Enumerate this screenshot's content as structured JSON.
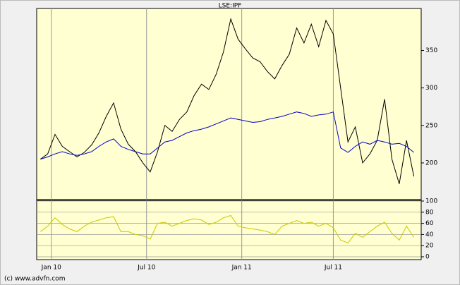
{
  "footer": "(c) www.advfn.com",
  "chart_data": [
    {
      "type": "line",
      "title": "LSE:IPF",
      "x": [
        -3,
        -1,
        1,
        3,
        5,
        7,
        9,
        11,
        13,
        15,
        17,
        19,
        21,
        23,
        25,
        27,
        29,
        31,
        33,
        35,
        37,
        39,
        41,
        43,
        45,
        47,
        49,
        51,
        53,
        55,
        57,
        59,
        61,
        63,
        65,
        67,
        69,
        71,
        73,
        75,
        77,
        79,
        81,
        83,
        85,
        87,
        89,
        91,
        93,
        95,
        97,
        99
      ],
      "xlim": [
        -4,
        101
      ],
      "ylim": [
        151,
        406
      ],
      "yticks": [
        200,
        250,
        300,
        350
      ],
      "series": [
        {
          "color": "#000000",
          "values": [
            205,
            212,
            238,
            222,
            215,
            208,
            214,
            224,
            240,
            262,
            280,
            245,
            225,
            215,
            200,
            188,
            215,
            250,
            242,
            258,
            268,
            290,
            305,
            298,
            318,
            348,
            392,
            365,
            352,
            340,
            335,
            322,
            312,
            330,
            345,
            380,
            360,
            385,
            355,
            390,
            372,
            300,
            228,
            248,
            200,
            212,
            230,
            285,
            205,
            172,
            230,
            182
          ]
        },
        {
          "color": "#0000cc",
          "values": [
            205,
            208,
            212,
            215,
            212,
            210,
            212,
            215,
            222,
            228,
            232,
            222,
            218,
            215,
            212,
            212,
            220,
            228,
            230,
            235,
            240,
            243,
            245,
            248,
            252,
            256,
            260,
            258,
            256,
            254,
            255,
            258,
            260,
            262,
            265,
            268,
            266,
            262,
            264,
            265,
            268,
            220,
            214,
            222,
            228,
            225,
            230,
            228,
            225,
            226,
            222,
            214
          ]
        }
      ]
    },
    {
      "type": "line",
      "x": [
        -3,
        -1,
        1,
        3,
        5,
        7,
        9,
        11,
        13,
        15,
        17,
        19,
        21,
        23,
        25,
        27,
        29,
        31,
        33,
        35,
        37,
        39,
        41,
        43,
        45,
        47,
        49,
        51,
        53,
        55,
        57,
        59,
        61,
        63,
        65,
        67,
        69,
        71,
        73,
        75,
        77,
        79,
        81,
        83,
        85,
        87,
        89,
        91,
        93,
        95,
        97,
        99
      ],
      "xlim": [
        -4,
        101
      ],
      "xticks": [
        {
          "value": 0,
          "label": "Jan 10"
        },
        {
          "value": 26,
          "label": "Jul 10"
        },
        {
          "value": 52,
          "label": "Jan 11"
        },
        {
          "value": 77,
          "label": "Jul 11"
        }
      ],
      "ylim": [
        0,
        100
      ],
      "yticks": [
        0,
        20,
        40,
        60,
        80,
        100
      ],
      "grid": true,
      "series": [
        {
          "color": "#c8c800",
          "values": [
            45,
            55,
            70,
            58,
            50,
            45,
            55,
            62,
            66,
            70,
            72,
            45,
            45,
            40,
            38,
            32,
            60,
            62,
            55,
            60,
            65,
            68,
            66,
            58,
            62,
            70,
            74,
            55,
            52,
            50,
            48,
            45,
            40,
            55,
            60,
            65,
            60,
            62,
            55,
            60,
            52,
            30,
            25,
            42,
            35,
            45,
            55,
            62,
            42,
            30,
            55,
            35
          ]
        }
      ]
    }
  ]
}
